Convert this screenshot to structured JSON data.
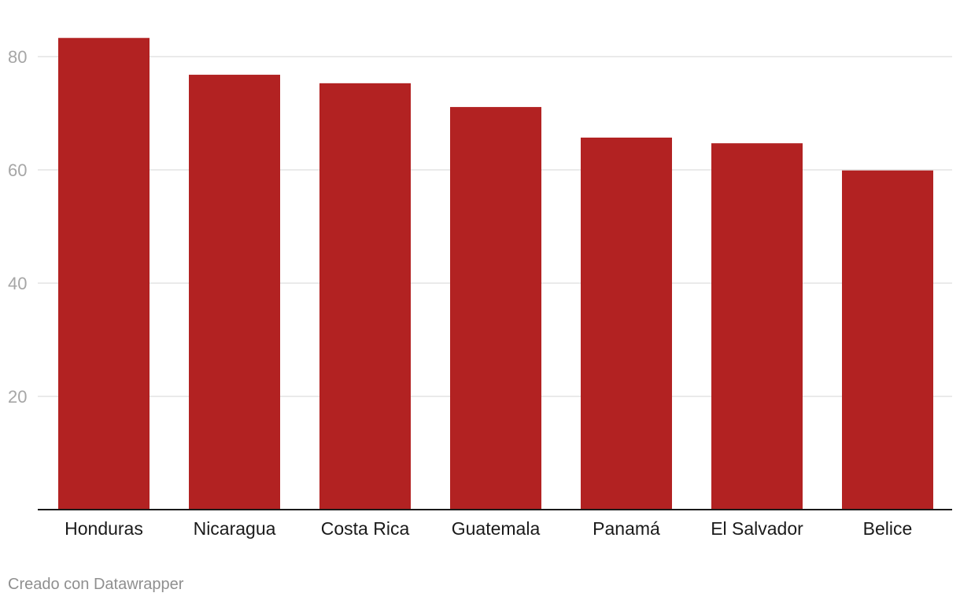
{
  "chart_data": {
    "type": "bar",
    "categories": [
      "Honduras",
      "Nicaragua",
      "Costa Rica",
      "Guatemala",
      "Panamá",
      "El Salvador",
      "Belice"
    ],
    "values": [
      83.3,
      76.8,
      75.3,
      71.1,
      65.7,
      64.7,
      59.9
    ],
    "title": "",
    "xlabel": "",
    "ylabel": "",
    "ylim": [
      0,
      85
    ],
    "yticks": [
      20,
      40,
      60,
      80
    ],
    "grid": true,
    "bar_color": "#b22222"
  },
  "footer": {
    "credit": "Creado con Datawrapper"
  }
}
